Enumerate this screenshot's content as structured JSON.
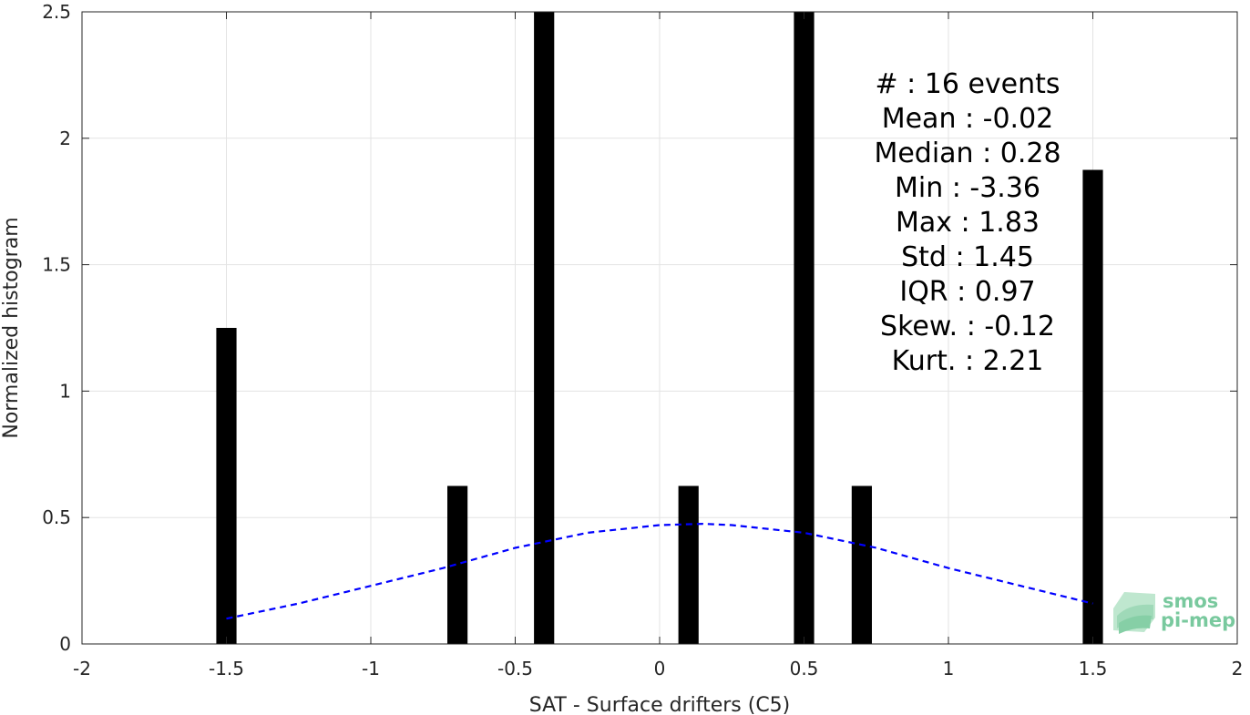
{
  "chart_data": {
    "type": "bar",
    "title": "",
    "xlabel": "SAT - Surface drifters (C5)",
    "ylabel": "Normalized histogram",
    "xlim": [
      -2,
      2
    ],
    "ylim": [
      0,
      2.5
    ],
    "grid": true,
    "xticks": [
      -2,
      -1.5,
      -1,
      -0.5,
      0,
      0.5,
      1,
      1.5,
      2
    ],
    "xtick_labels": [
      "-2",
      "-1.5",
      "-1",
      "-0.5",
      "0",
      "0.5",
      "1",
      "1.5",
      "2"
    ],
    "yticks": [
      0,
      0.5,
      1,
      1.5,
      2,
      2.5
    ],
    "ytick_labels": [
      "0",
      "0.5",
      "1",
      "1.5",
      "2",
      "2.5"
    ],
    "bar_color": "#000000",
    "bar_width": 0.07,
    "bars": [
      {
        "x": -1.5,
        "value": 1.25
      },
      {
        "x": -0.7,
        "value": 0.625
      },
      {
        "x": -0.4,
        "value": 2.5
      },
      {
        "x": 0.1,
        "value": 0.625
      },
      {
        "x": 0.5,
        "value": 2.5
      },
      {
        "x": 0.7,
        "value": 0.625
      },
      {
        "x": 1.5,
        "value": 1.875
      }
    ],
    "fit_curve": {
      "style": "dashed",
      "color": "#0000ff",
      "x": [
        -1.5,
        -1.25,
        -1.0,
        -0.75,
        -0.5,
        -0.25,
        0.0,
        0.15,
        0.25,
        0.5,
        0.75,
        1.0,
        1.25,
        1.5
      ],
      "y": [
        0.1,
        0.16,
        0.23,
        0.3,
        0.38,
        0.44,
        0.47,
        0.475,
        0.47,
        0.44,
        0.38,
        0.3,
        0.23,
        0.16
      ]
    },
    "stats": [
      "#  : 16 events",
      "Mean : -0.02",
      "Median : 0.28",
      "Min : -3.36",
      "Max : 1.83",
      "Std : 1.45",
      "IQR : 0.97",
      "Skew. : -0.12",
      "Kurt. : 2.21"
    ]
  },
  "logo": {
    "line1": "smos",
    "line2": "pi-mep",
    "color": "#79c99e"
  }
}
